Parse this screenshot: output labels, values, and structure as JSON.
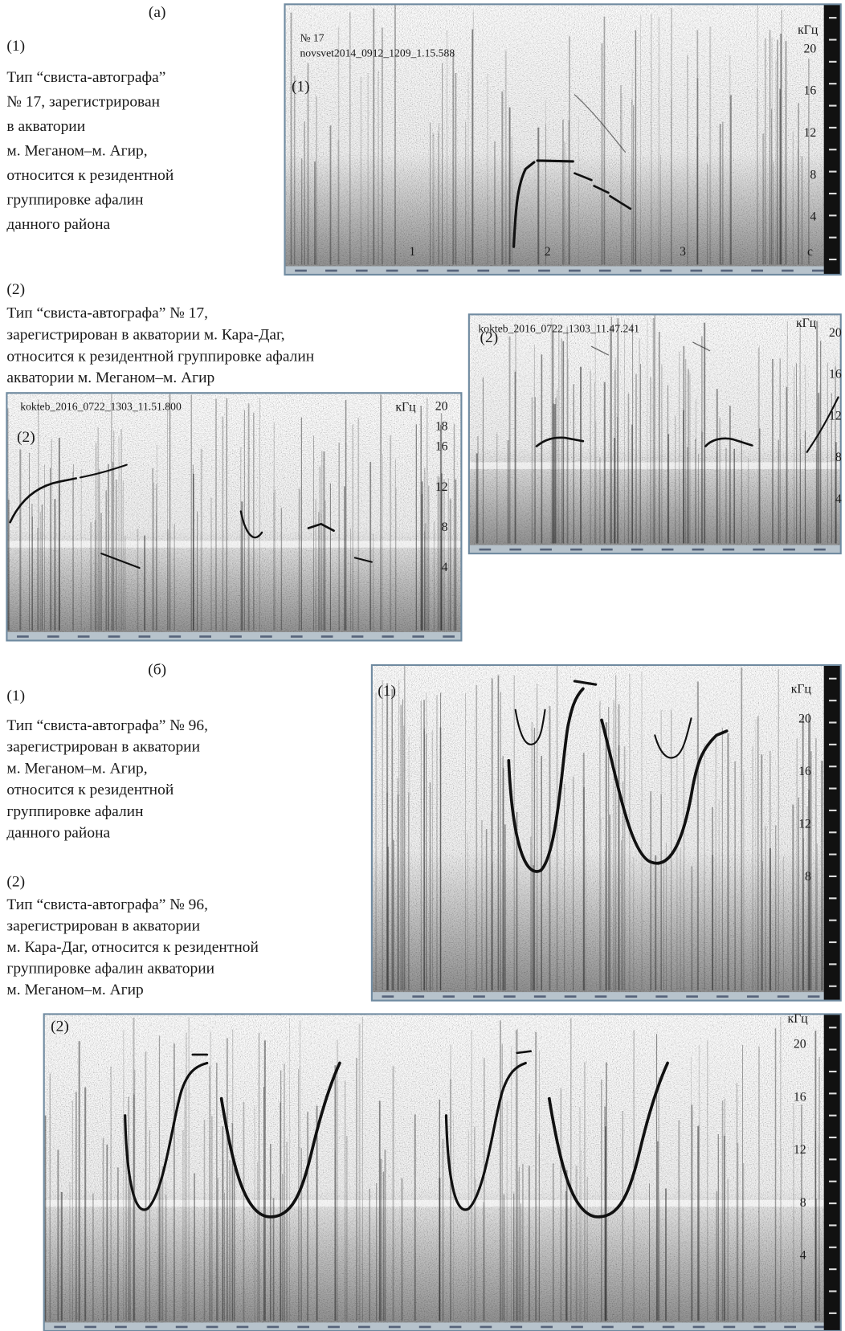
{
  "section_a": {
    "label": "(a)",
    "item1": {
      "number": "(1)",
      "lines": [
        "Тип “свиста-автографа”",
        "№ 17, зарегистрирован",
        "в акватории",
        "м. Меганом–м. Агир,",
        "относится к резидентной",
        "группировке афалин",
        "данного района"
      ]
    },
    "item2": {
      "number": "(2)",
      "lines": [
        "Тип “свиста-автографа” № 17,",
        "зарегистрирован в акватории м. Кара-Даг,",
        "относится к резидентной группировке афалин",
        "акватории м. Меганом–м. Агир"
      ]
    },
    "spectrogram1": {
      "record_no": "№ 17",
      "file": "novsvet2014_0912_1209_1.15.588",
      "panel": "(1)",
      "unit": "кГц",
      "freq_ticks": [
        20,
        16,
        12,
        8,
        4
      ],
      "time_unit": "c",
      "time_marks": [
        1,
        2,
        3
      ]
    },
    "spectrogram2_left": {
      "file": "kokteb_2016_0722_1303_11.51.800",
      "panel": "(2)",
      "unit": "кГц",
      "freq_ticks": [
        20,
        18,
        16,
        12,
        8,
        4
      ]
    },
    "spectrogram2_right": {
      "file": "kokteb_2016_0722_1303_11.47.241",
      "panel": "(2)",
      "unit": "кГц",
      "freq_ticks": [
        20,
        16,
        12,
        8,
        4
      ]
    }
  },
  "section_b": {
    "label": "(б)",
    "item1": {
      "number": "(1)",
      "lines": [
        "Тип “свиста-автографа” № 96,",
        "зарегистрирован в акватории",
        "м. Меганом–м. Агир,",
        "относится к резидентной",
        "группировке афалин",
        "данного района"
      ]
    },
    "item2": {
      "number": "(2)",
      "lines": [
        "Тип “свиста-автографа” № 96,",
        "зарегистрирован в акватории",
        "м. Кара-Даг, относится к резидентной",
        "группировке афалин акватории",
        "м. Меганом–м. Агир"
      ]
    },
    "spectrogram1": {
      "panel": "(1)",
      "unit": "кГц",
      "freq_ticks": [
        20,
        16,
        12,
        8
      ]
    },
    "spectrogram2": {
      "panel": "(2)",
      "unit": "кГц",
      "freq_ticks": [
        20,
        16,
        12,
        8,
        4
      ]
    }
  }
}
